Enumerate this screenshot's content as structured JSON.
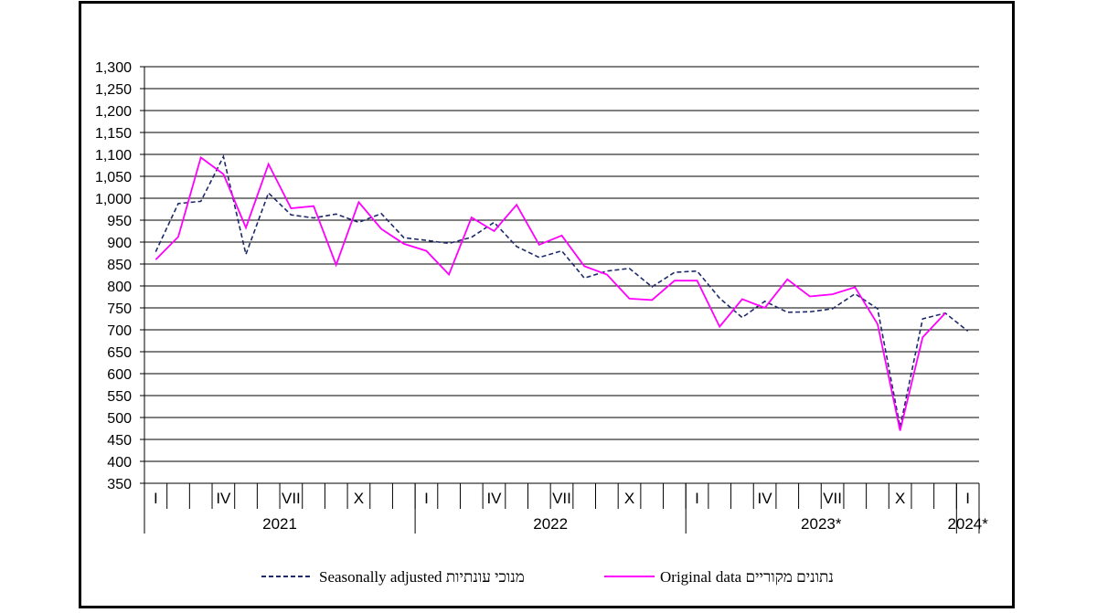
{
  "chart_data": {
    "type": "line",
    "ylim": [
      350,
      1300
    ],
    "yticks": [
      350,
      400,
      450,
      500,
      550,
      600,
      650,
      700,
      750,
      800,
      850,
      900,
      950,
      1000,
      1050,
      1100,
      1150,
      1200,
      1250,
      1300
    ],
    "ytick_labels": [
      "350",
      "400",
      "450",
      "500",
      "550",
      "600",
      "650",
      "700",
      "750",
      "800",
      "850",
      "900",
      "950",
      "1,000",
      "1,050",
      "1,100",
      "1,150",
      "1,200",
      "1,250",
      "1,300"
    ],
    "month_labels": [
      {
        "label": "I",
        "index": 0
      },
      {
        "label": "IV",
        "index": 3
      },
      {
        "label": "VII",
        "index": 6
      },
      {
        "label": "X",
        "index": 9
      },
      {
        "label": "I",
        "index": 12
      },
      {
        "label": "IV",
        "index": 15
      },
      {
        "label": "VII",
        "index": 18
      },
      {
        "label": "X",
        "index": 21
      },
      {
        "label": "I",
        "index": 24
      },
      {
        "label": "IV",
        "index": 27
      },
      {
        "label": "VII",
        "index": 30
      },
      {
        "label": "X",
        "index": 33
      },
      {
        "label": "I",
        "index": 36
      }
    ],
    "year_labels": [
      {
        "label": "2021",
        "start": 0,
        "end": 12
      },
      {
        "label": "2022",
        "start": 12,
        "end": 24
      },
      {
        "label": "2023*",
        "start": 24,
        "end": 36
      },
      {
        "label": "2024*",
        "start": 36,
        "end": 37
      }
    ],
    "x": [
      "2021-01",
      "2021-02",
      "2021-03",
      "2021-04",
      "2021-05",
      "2021-06",
      "2021-07",
      "2021-08",
      "2021-09",
      "2021-10",
      "2021-11",
      "2021-12",
      "2022-01",
      "2022-02",
      "2022-03",
      "2022-04",
      "2022-05",
      "2022-06",
      "2022-07",
      "2022-08",
      "2022-09",
      "2022-10",
      "2022-11",
      "2022-12",
      "2023-01",
      "2023-02",
      "2023-03",
      "2023-04",
      "2023-05",
      "2023-06",
      "2023-07",
      "2023-08",
      "2023-09",
      "2023-10",
      "2023-11",
      "2023-12",
      "2024-01"
    ],
    "series": [
      {
        "name": "Seasonally adjusted מנוכי עונתיות",
        "color": "#1f2a6b",
        "style": "dashed",
        "values": [
          878,
          988,
          993,
          1095,
          872,
          1012,
          962,
          955,
          964,
          945,
          965,
          910,
          904,
          897,
          911,
          945,
          890,
          865,
          880,
          818,
          834,
          840,
          798,
          831,
          834,
          772,
          728,
          765,
          740,
          741,
          748,
          782,
          748,
          478,
          725,
          738,
          697
        ]
      },
      {
        "name": "Original data נתונים מקוריים",
        "color": "#ff00ff",
        "style": "solid",
        "values": [
          860,
          912,
          1093,
          1055,
          933,
          1078,
          977,
          982,
          848,
          991,
          930,
          896,
          880,
          826,
          956,
          925,
          985,
          894,
          915,
          845,
          826,
          771,
          768,
          812,
          812,
          707,
          770,
          750,
          815,
          776,
          781,
          797,
          713,
          470,
          683,
          738,
          null
        ]
      }
    ]
  },
  "legend": {
    "adjusted": "Seasonally adjusted מנוכי עונתיות",
    "original": "Original data נתונים מקוריים"
  }
}
